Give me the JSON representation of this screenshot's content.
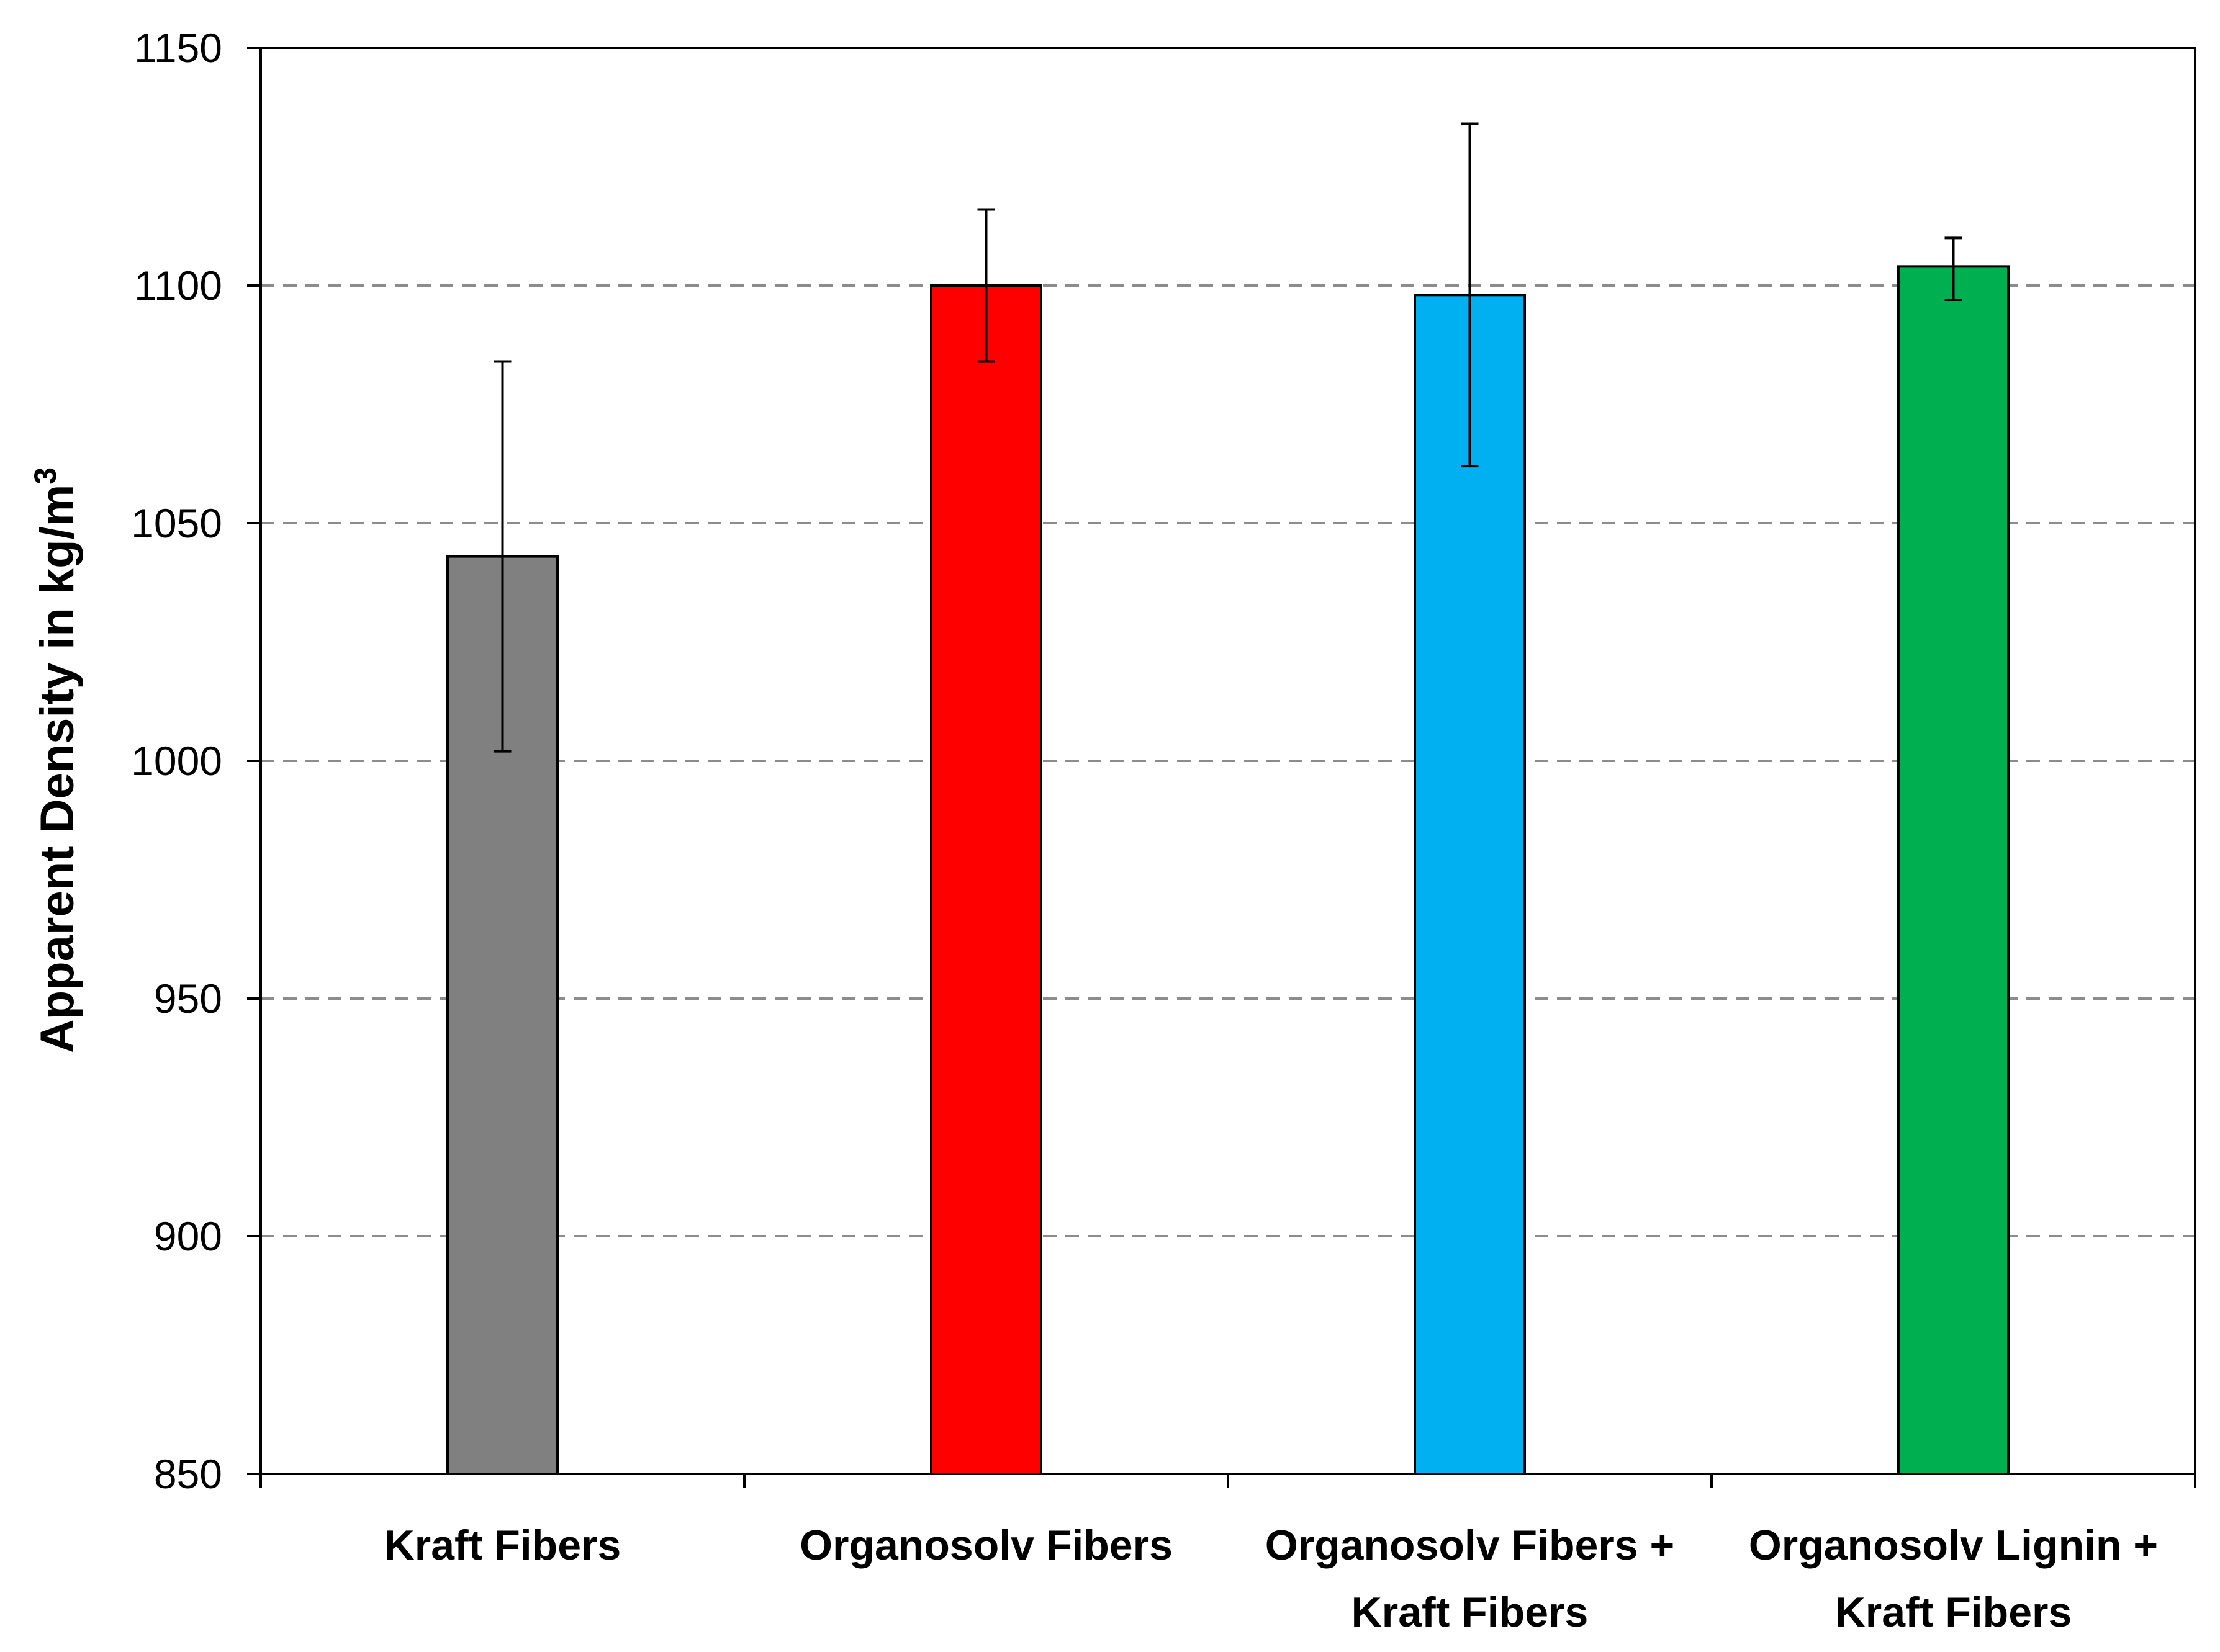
{
  "chart_data": {
    "type": "bar",
    "title": "",
    "xlabel": "",
    "ylabel": {
      "main": "Apparent Density in kg/m",
      "superscript": "3"
    },
    "ylim": [
      850,
      1150
    ],
    "yticks": [
      850,
      900,
      950,
      1000,
      1050,
      1100,
      1150
    ],
    "grid": "horizontal dashed",
    "categories": [
      {
        "lines": [
          "Kraft Fibers"
        ]
      },
      {
        "lines": [
          "Organosolv Fibers"
        ]
      },
      {
        "lines": [
          "Organosolv Fibers +",
          "Kraft Fibers"
        ]
      },
      {
        "lines": [
          "Organosolv Lignin +",
          "Kraft Fibers"
        ]
      }
    ],
    "values": [
      1043,
      1100,
      1098,
      1104
    ],
    "error_low": [
      1002,
      1084,
      1062,
      1097
    ],
    "error_high": [
      1084,
      1116,
      1134,
      1110
    ],
    "colors": [
      "#808080",
      "#ff0000",
      "#00b0f0",
      "#00b050"
    ]
  }
}
